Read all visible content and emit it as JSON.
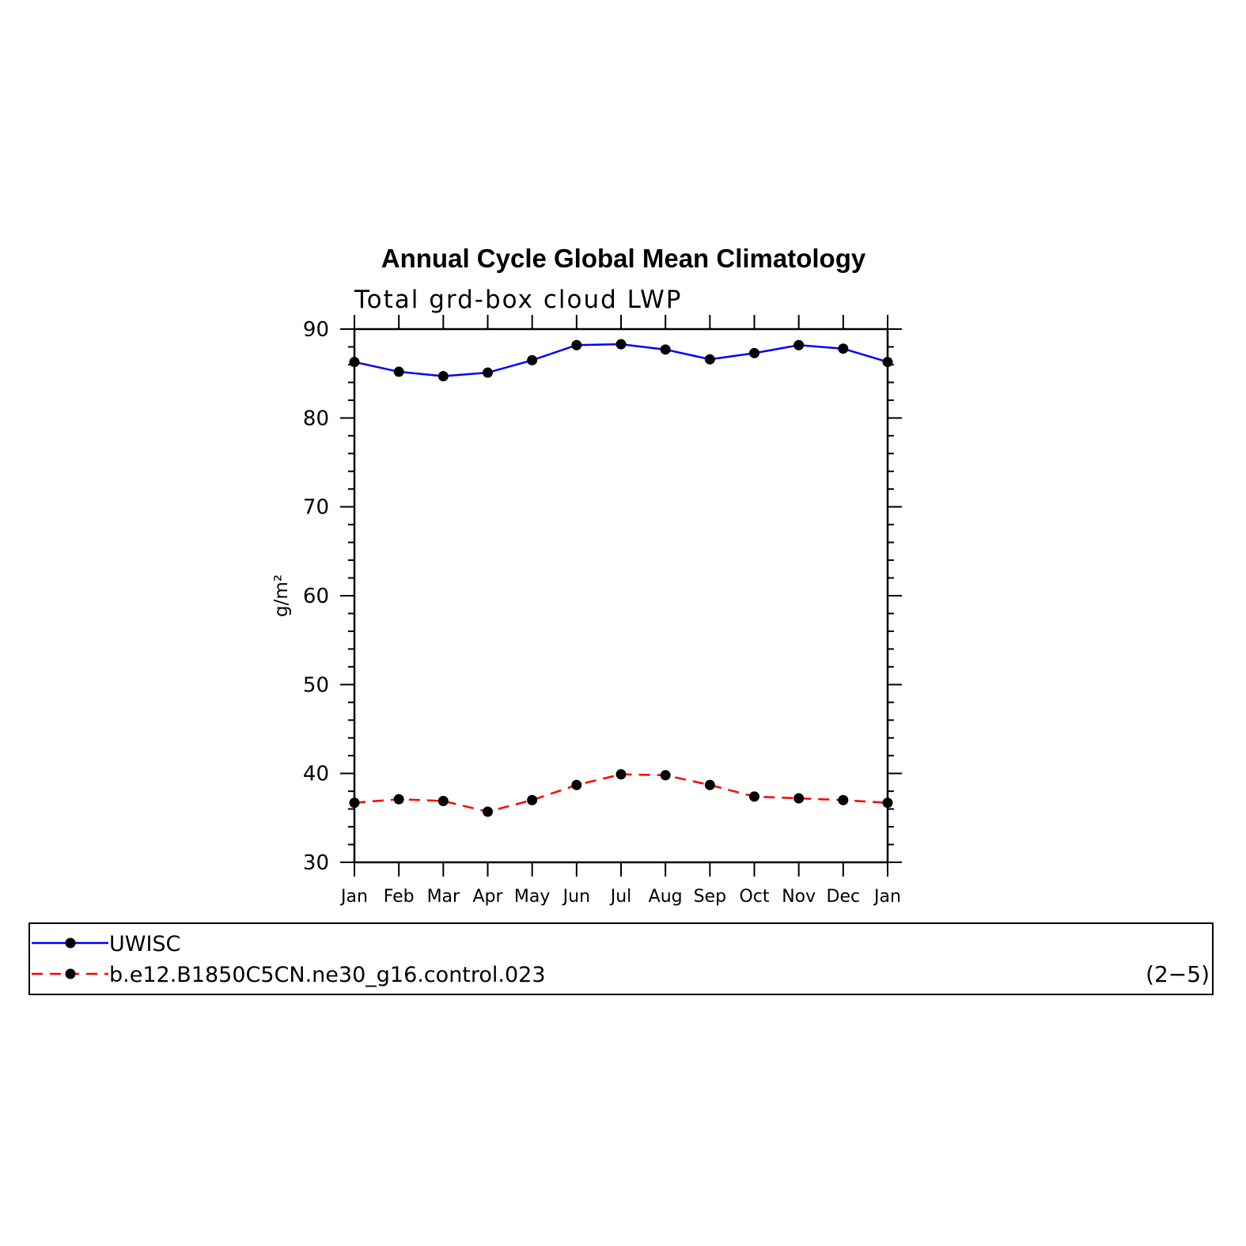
{
  "chart_data": {
    "type": "line",
    "title": "Annual Cycle Global Mean Climatology",
    "subtitle": "Total grd-box cloud LWP",
    "xlabel": "",
    "ylabel": "g/m²",
    "categories": [
      "Jan",
      "Feb",
      "Mar",
      "Apr",
      "May",
      "Jun",
      "Jul",
      "Aug",
      "Sep",
      "Oct",
      "Nov",
      "Dec",
      "Jan"
    ],
    "ylim": [
      30,
      90
    ],
    "yticks": [
      "30",
      "40",
      "50",
      "60",
      "70",
      "80",
      "90"
    ],
    "grid": false,
    "legend_position": "bottom",
    "panel_label": "(2−5)",
    "series": [
      {
        "name": "UWISC",
        "color": "#0000ff",
        "line_style": "solid",
        "marker": "filled-circle",
        "values": [
          86.3,
          85.2,
          84.7,
          85.1,
          86.5,
          88.2,
          88.3,
          87.7,
          86.6,
          87.3,
          88.2,
          87.8,
          86.3
        ]
      },
      {
        "name": "b.e12.B1850C5CN.ne30_g16.control.023",
        "color": "#ff0000",
        "line_style": "dashed",
        "marker": "filled-circle",
        "values": [
          36.7,
          37.1,
          36.9,
          35.7,
          37.0,
          38.7,
          39.9,
          39.8,
          38.7,
          37.4,
          37.2,
          37.0,
          36.7
        ]
      }
    ]
  }
}
